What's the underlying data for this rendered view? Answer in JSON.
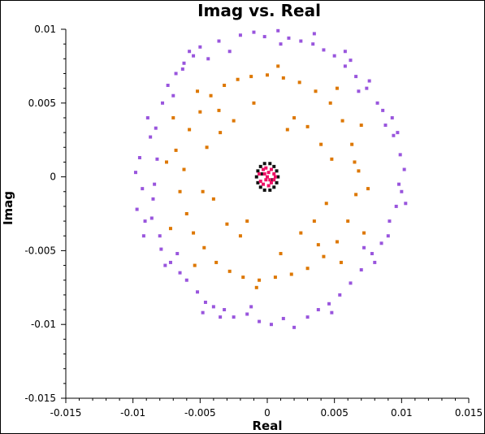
{
  "chart_data": {
    "type": "scatter",
    "title": "Imag vs. Real",
    "xlabel": "Real",
    "ylabel": "Imag",
    "xlim": [
      -0.015,
      0.015
    ],
    "ylim": [
      -0.015,
      0.01
    ],
    "xticks": [
      -0.015,
      -0.01,
      -0.005,
      0,
      0.005,
      0.01,
      0.015
    ],
    "xtick_labels": [
      "-0.015",
      "-0.01",
      "-0.005",
      "0",
      "0.005",
      "0.01",
      "0.015"
    ],
    "yticks": [
      -0.015,
      -0.01,
      -0.005,
      0,
      0.005,
      0.01
    ],
    "ytick_labels": [
      "-0.015",
      "-0.01",
      "-0.005",
      "0",
      "0.005",
      "0.01"
    ],
    "grid": false,
    "series": [
      {
        "color": "#9955dd",
        "marker": "square",
        "points": [
          [
            -0.0095,
            0.0013
          ],
          [
            -0.0098,
            0.0003
          ],
          [
            -0.0093,
            -0.0008
          ],
          [
            -0.0097,
            -0.0022
          ],
          [
            -0.0091,
            -0.003
          ],
          [
            -0.0087,
            0.0027
          ],
          [
            -0.0083,
            0.0033
          ],
          [
            -0.0085,
            -0.0015
          ],
          [
            -0.008,
            -0.004
          ],
          [
            -0.0079,
            -0.0049
          ],
          [
            -0.0078,
            0.005
          ],
          [
            -0.0074,
            0.0062
          ],
          [
            -0.0072,
            -0.0058
          ],
          [
            -0.0068,
            0.007
          ],
          [
            -0.0065,
            -0.0065
          ],
          [
            -0.0062,
            0.0077
          ],
          [
            -0.006,
            -0.007
          ],
          [
            -0.0055,
            0.0082
          ],
          [
            -0.0052,
            -0.0078
          ],
          [
            -0.005,
            0.0088
          ],
          [
            -0.0046,
            -0.0085
          ],
          [
            -0.0044,
            0.008
          ],
          [
            -0.004,
            -0.0088
          ],
          [
            -0.0036,
            0.0092
          ],
          [
            -0.0032,
            -0.009
          ],
          [
            -0.0028,
            0.0085
          ],
          [
            -0.0025,
            -0.0095
          ],
          [
            -0.002,
            0.0096
          ],
          [
            -0.0015,
            -0.0093
          ],
          [
            -0.001,
            0.0098
          ],
          [
            -0.0006,
            -0.0098
          ],
          [
            -0.0002,
            0.0095
          ],
          [
            0.0003,
            -0.01
          ],
          [
            0.0008,
            0.0099
          ],
          [
            0.0012,
            -0.0096
          ],
          [
            0.0016,
            0.0094
          ],
          [
            0.002,
            -0.0102
          ],
          [
            0.0025,
            0.0092
          ],
          [
            0.003,
            -0.0095
          ],
          [
            0.0034,
            0.009
          ],
          [
            0.0038,
            -0.009
          ],
          [
            0.0042,
            0.0086
          ],
          [
            0.0046,
            -0.0086
          ],
          [
            0.005,
            0.0082
          ],
          [
            0.0054,
            -0.008
          ],
          [
            0.0058,
            0.0075
          ],
          [
            0.0062,
            -0.0072
          ],
          [
            0.0066,
            0.0068
          ],
          [
            0.007,
            -0.0063
          ],
          [
            0.0074,
            0.006
          ],
          [
            0.0078,
            -0.0052
          ],
          [
            0.0082,
            0.005
          ],
          [
            0.0085,
            -0.0045
          ],
          [
            0.0088,
            0.0035
          ],
          [
            0.0091,
            -0.003
          ],
          [
            0.0094,
            0.0028
          ],
          [
            0.0096,
            -0.002
          ],
          [
            0.0099,
            0.0015
          ],
          [
            0.01,
            -0.001
          ],
          [
            0.0102,
            0.0005
          ],
          [
            0.0098,
            -0.0005
          ],
          [
            0.0103,
            -0.0018
          ],
          [
            0.0097,
            0.003
          ],
          [
            0.0093,
            0.004
          ],
          [
            0.009,
            -0.004
          ],
          [
            0.0086,
            0.0045
          ],
          [
            -0.0089,
            0.004
          ],
          [
            -0.0092,
            -0.004
          ],
          [
            -0.0086,
            -0.0028
          ],
          [
            -0.0082,
            0.0012
          ],
          [
            -0.0084,
            -0.0005
          ],
          [
            -0.007,
            0.0055
          ],
          [
            -0.0067,
            -0.0052
          ],
          [
            0.0068,
            0.0058
          ],
          [
            0.0072,
            -0.0048
          ],
          [
            0.0058,
            0.0085
          ],
          [
            -0.0058,
            0.0085
          ],
          [
            -0.0048,
            -0.0092
          ],
          [
            0.0048,
            -0.0092
          ],
          [
            0.001,
            0.009
          ],
          [
            -0.0012,
            -0.0088
          ],
          [
            0.0035,
            0.0097
          ],
          [
            -0.0035,
            -0.0095
          ],
          [
            0.0062,
            0.0079
          ],
          [
            -0.0063,
            0.0073
          ],
          [
            0.0076,
            0.0065
          ],
          [
            -0.0076,
            -0.006
          ],
          [
            0.008,
            -0.0058
          ]
        ]
      },
      {
        "color": "#dd7700",
        "marker": "square",
        "points": [
          [
            -0.0062,
            0.0005
          ],
          [
            -0.0065,
            -0.001
          ],
          [
            -0.0068,
            0.0018
          ],
          [
            -0.006,
            -0.0025
          ],
          [
            -0.0058,
            0.0032
          ],
          [
            -0.0055,
            -0.0038
          ],
          [
            -0.005,
            0.0044
          ],
          [
            -0.0047,
            -0.0048
          ],
          [
            -0.0042,
            0.0055
          ],
          [
            -0.0038,
            -0.0058
          ],
          [
            -0.0032,
            0.0062
          ],
          [
            -0.0028,
            -0.0064
          ],
          [
            -0.0022,
            0.0066
          ],
          [
            -0.0018,
            -0.0068
          ],
          [
            -0.0012,
            0.0068
          ],
          [
            -0.0006,
            -0.007
          ],
          [
            0.0,
            0.0069
          ],
          [
            0.0006,
            -0.0068
          ],
          [
            0.0012,
            0.0067
          ],
          [
            0.0018,
            -0.0066
          ],
          [
            0.0024,
            0.0064
          ],
          [
            0.003,
            -0.0062
          ],
          [
            0.0036,
            0.0058
          ],
          [
            0.0042,
            -0.0054
          ],
          [
            0.0047,
            0.005
          ],
          [
            0.0052,
            -0.0044
          ],
          [
            0.0056,
            0.0038
          ],
          [
            0.006,
            -0.003
          ],
          [
            0.0063,
            0.0022
          ],
          [
            0.0066,
            -0.0012
          ],
          [
            0.0068,
            0.0004
          ],
          [
            0.0065,
            0.001
          ],
          [
            -0.0045,
            0.002
          ],
          [
            -0.004,
            -0.0015
          ],
          [
            -0.0035,
            0.003
          ],
          [
            -0.003,
            -0.0032
          ],
          [
            -0.0025,
            0.0038
          ],
          [
            -0.002,
            -0.004
          ],
          [
            0.002,
            0.004
          ],
          [
            0.0025,
            -0.0038
          ],
          [
            0.003,
            0.0034
          ],
          [
            0.0035,
            -0.003
          ],
          [
            0.004,
            0.0022
          ],
          [
            0.0044,
            -0.0018
          ],
          [
            -0.007,
            0.004
          ],
          [
            -0.0072,
            -0.0035
          ],
          [
            0.007,
            0.0035
          ],
          [
            0.0072,
            -0.0038
          ],
          [
            -0.0052,
            0.0058
          ],
          [
            -0.0054,
            -0.006
          ],
          [
            0.0052,
            0.006
          ],
          [
            0.0055,
            -0.0058
          ],
          [
            -0.001,
            0.005
          ],
          [
            0.001,
            -0.0052
          ],
          [
            -0.0075,
            0.001
          ],
          [
            0.0075,
            -0.0008
          ],
          [
            -0.0036,
            0.0045
          ],
          [
            0.0038,
            -0.0046
          ],
          [
            -0.0015,
            -0.003
          ],
          [
            0.0015,
            0.0032
          ],
          [
            -0.0048,
            -0.001
          ],
          [
            0.0048,
            0.0012
          ],
          [
            0.0008,
            0.0075
          ],
          [
            -0.0008,
            -0.0075
          ]
        ]
      },
      {
        "color": "#111111",
        "marker": "square",
        "points": [
          [
            -0.0008,
            0.0
          ],
          [
            -0.0007,
            0.0004
          ],
          [
            -0.0007,
            -0.0004
          ],
          [
            -0.0005,
            0.0007
          ],
          [
            -0.0005,
            -0.0007
          ],
          [
            -0.0002,
            0.0009
          ],
          [
            -0.0002,
            -0.0009
          ],
          [
            0.0002,
            0.0009
          ],
          [
            0.0002,
            -0.0009
          ],
          [
            0.0005,
            0.0007
          ],
          [
            0.0005,
            -0.0007
          ],
          [
            0.0007,
            0.0004
          ],
          [
            0.0007,
            -0.0004
          ],
          [
            0.0008,
            0.0
          ],
          [
            -0.0004,
            0.0002
          ],
          [
            0.0004,
            -0.0002
          ]
        ]
      },
      {
        "color": "#ee1166",
        "marker": "square",
        "points": [
          [
            -0.0006,
            0.0002
          ],
          [
            -0.0005,
            -0.0003
          ],
          [
            -0.0003,
            0.0005
          ],
          [
            -0.0003,
            -0.0005
          ],
          [
            -0.0001,
            0.0006
          ],
          [
            0.0,
            0.0
          ],
          [
            0.0001,
            -0.0006
          ],
          [
            0.0003,
            0.0005
          ],
          [
            0.0003,
            -0.0004
          ],
          [
            0.0005,
            0.0002
          ],
          [
            0.0005,
            -0.0002
          ],
          [
            0.0006,
            0.0
          ],
          [
            -0.0002,
            0.0002
          ],
          [
            0.0002,
            -0.0002
          ],
          [
            -0.0001,
            -0.0002
          ],
          [
            0.0001,
            0.0003
          ]
        ]
      }
    ]
  }
}
